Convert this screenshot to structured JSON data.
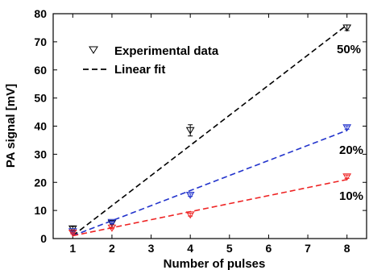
{
  "chart_data": {
    "type": "scatter",
    "xlabel": "Number of pulses",
    "ylabel": "PA signal [mV]",
    "xlim": [
      0.5,
      8.5
    ],
    "ylim": [
      0,
      80
    ],
    "xticks": [
      1,
      2,
      3,
      4,
      5,
      6,
      7,
      8
    ],
    "yticks": [
      0,
      10,
      20,
      30,
      40,
      50,
      60,
      70,
      80
    ],
    "grid": false,
    "legend": {
      "placement": "top-left",
      "entries": [
        {
          "label": "Experimental data",
          "marker": "triangle-down"
        },
        {
          "label": "Linear fit",
          "line": "dashed"
        }
      ]
    },
    "series": [
      {
        "label": "50%",
        "color": "#000000",
        "x": [
          1,
          2,
          4,
          8
        ],
        "y": [
          3.5,
          5.5,
          38.5,
          75
        ],
        "yerr": [
          0.8,
          0.6,
          2.0,
          1.0
        ],
        "fit": {
          "x": [
            1,
            8
          ],
          "y": [
            1.0,
            76.0
          ]
        }
      },
      {
        "label": "20%",
        "color": "#2233cc",
        "x": [
          1,
          2,
          4,
          8
        ],
        "y": [
          2.5,
          5.8,
          15.5,
          39.5
        ],
        "yerr": [
          0.4,
          0.4,
          0.5,
          0.6
        ],
        "fit": {
          "x": [
            1,
            8
          ],
          "y": [
            1.0,
            38.5
          ]
        }
      },
      {
        "label": "10%",
        "color": "#ee2222",
        "x": [
          1,
          2,
          4,
          8
        ],
        "y": [
          2.0,
          3.8,
          8.5,
          22
        ],
        "yerr": [
          0.3,
          0.3,
          0.5,
          0.6
        ],
        "fit": {
          "x": [
            1,
            8
          ],
          "y": [
            1.0,
            21.0
          ]
        }
      }
    ]
  }
}
